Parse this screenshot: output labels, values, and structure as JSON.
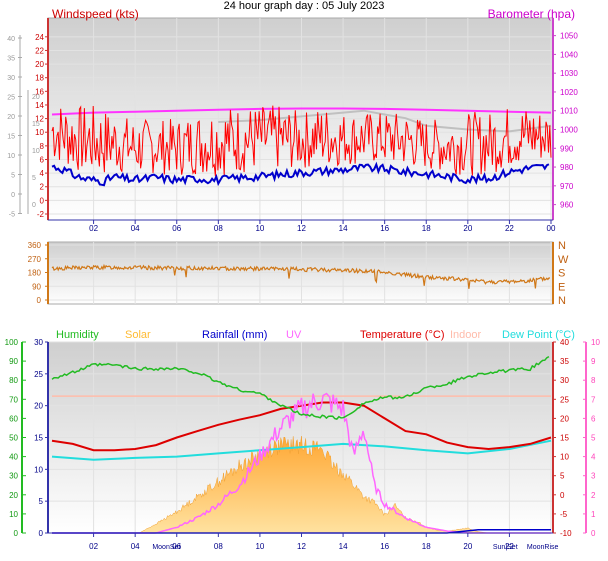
{
  "header": {
    "title": "24 hour graph day : 05 July 2023"
  },
  "x_ticks": [
    "02",
    "04",
    "06",
    "08",
    "10",
    "12",
    "14",
    "16",
    "18",
    "20",
    "22",
    "00"
  ],
  "chart_data": [
    {
      "type": "line",
      "name": "wind-baro",
      "labels": {
        "left": "Windspeed (kts)",
        "right": "Barometer (hpa)"
      },
      "y_left_outer": {
        "ticks": [
          "40",
          "35",
          "30",
          "25",
          "20",
          "15",
          "10",
          "5",
          "0",
          "-5"
        ]
      },
      "y_left": {
        "range": [
          -2,
          25
        ],
        "ticks": [
          24,
          22,
          20,
          18,
          16,
          14,
          12,
          10,
          8,
          6,
          4,
          2,
          0,
          -2
        ]
      },
      "y_left_alt": {
        "ticks": [
          "20",
          "15",
          "10",
          "5",
          "0"
        ]
      },
      "y_right": {
        "range": [
          955,
          1053
        ],
        "ticks": [
          1050,
          1040,
          1030,
          1020,
          1010,
          1000,
          990,
          980,
          970,
          960,
          950
        ]
      },
      "colors": {
        "wind": "#ff0000",
        "avg": "#0000cc",
        "baro": "#ff33ff",
        "baro_shadow": "#c0c0c0"
      },
      "series": {
        "gust_envelope": {
          "x": [
            0,
            1,
            2,
            3,
            4,
            5,
            6,
            7,
            8,
            9,
            10,
            11,
            12,
            13,
            14,
            15,
            16,
            17,
            18,
            19,
            20,
            21,
            22,
            23,
            24
          ],
          "y": [
            15,
            14,
            14,
            13,
            12,
            12,
            12,
            13,
            14,
            14,
            14,
            14,
            13,
            14,
            13,
            13,
            13,
            13,
            12,
            12,
            13,
            13,
            14,
            14,
            13
          ]
        },
        "avg": {
          "x": [
            0,
            0.5,
            1,
            1.5,
            2,
            2.5,
            3,
            3.5,
            4,
            5,
            6,
            7,
            8,
            9,
            10,
            11,
            12,
            13,
            14,
            15,
            16,
            17,
            18,
            19,
            20,
            21,
            22,
            23,
            24
          ],
          "y": [
            5,
            4.6,
            3.8,
            3.2,
            3,
            2.8,
            3.5,
            3.2,
            3,
            3.4,
            3,
            3.2,
            3,
            3.3,
            3.5,
            3.8,
            4.1,
            4.3,
            4.5,
            4.8,
            4.6,
            4.2,
            3.9,
            3.5,
            3.1,
            3.2,
            4.2,
            4.8,
            5
          ]
        },
        "baro": {
          "x": [
            0,
            2,
            4,
            6,
            8,
            10,
            12,
            14,
            16,
            18,
            20,
            22,
            24
          ],
          "y": [
            1008,
            1009,
            1009.5,
            1010,
            1010.5,
            1011,
            1011.2,
            1011.2,
            1011,
            1010.5,
            1010,
            1009.5,
            1009
          ]
        },
        "baro_shadow": {
          "x": [
            8,
            10,
            12,
            14,
            15,
            16,
            17,
            18,
            20,
            22,
            24
          ],
          "y": [
            1004,
            1005,
            1007,
            1009,
            1010,
            1008,
            1006,
            1002,
            1000,
            999,
            1002
          ]
        }
      }
    },
    {
      "type": "line",
      "name": "wind-direction",
      "y_left": {
        "range": [
          0,
          360
        ],
        "ticks": [
          360,
          270,
          180,
          90,
          0
        ]
      },
      "y_right_labels": [
        "N",
        "W",
        "S",
        "E",
        "N"
      ],
      "color": "#d07818",
      "series": {
        "x": [
          0,
          1,
          2,
          3,
          4,
          5,
          6,
          7,
          8,
          9,
          10,
          11,
          12,
          13,
          14,
          15,
          16,
          17,
          18,
          19,
          20,
          21,
          22,
          23,
          24
        ],
        "y": [
          205,
          210,
          213,
          213,
          212,
          210,
          208,
          208,
          207,
          206,
          205,
          203,
          200,
          198,
          195,
          190,
          182,
          165,
          150,
          142,
          130,
          118,
          120,
          128,
          142
        ]
      }
    },
    {
      "type": "area",
      "name": "multi",
      "legend": [
        "Humidity",
        "Solar",
        "Rainfall (mm)",
        "UV",
        "Temperature (°C)",
        "Indoor",
        "Dew Point (°C)"
      ],
      "legend_colors": [
        "#22bb22",
        "#ffbb33",
        "#0000cc",
        "#ff66ff",
        "#dd0000",
        "#ffbbaa",
        "#22dddd"
      ],
      "y_humidity": {
        "range": [
          0,
          100
        ],
        "ticks": [
          100,
          90,
          80,
          70,
          60,
          50,
          40,
          30,
          20,
          10,
          0
        ]
      },
      "y_rain": {
        "range": [
          0,
          30
        ],
        "ticks": [
          30,
          25,
          20,
          15,
          10,
          5,
          0
        ]
      },
      "y_temp": {
        "range": [
          -10,
          40
        ],
        "ticks": [
          40,
          35,
          30,
          25,
          20,
          15,
          10,
          5,
          0,
          -5,
          -10
        ]
      },
      "y_uv": {
        "range": [
          0,
          10
        ],
        "ticks": [
          10,
          9,
          8,
          7,
          6,
          5,
          4,
          3,
          2,
          1,
          0
        ]
      },
      "x_extra_labels": [
        "MoonSet",
        "Sun|Set",
        "MoonRise"
      ],
      "series": {
        "humidity": {
          "x": [
            0,
            1,
            2,
            3,
            4,
            5,
            6,
            7,
            8,
            9,
            10,
            11,
            12,
            13,
            14,
            15,
            16,
            17,
            18,
            19,
            20,
            21,
            22,
            23,
            24
          ],
          "y": [
            81,
            84,
            88,
            88,
            86,
            86,
            86,
            84,
            79,
            75,
            73,
            67,
            62,
            61,
            60,
            68,
            71,
            71,
            76,
            78,
            82,
            84,
            85,
            86,
            93
          ]
        },
        "indoor": {
          "x": [
            0,
            4,
            8,
            12,
            16,
            20,
            24
          ],
          "y": [
            21.5,
            21.5,
            21.5,
            21.5,
            21.5,
            21.5,
            21.5
          ]
        },
        "temperature": {
          "x": [
            0,
            1,
            2,
            3,
            4,
            5,
            6,
            7,
            8,
            9,
            10,
            11,
            12,
            13,
            14,
            15,
            16,
            17,
            18,
            19,
            20,
            21,
            22,
            23,
            24
          ],
          "y": [
            14.5,
            14,
            13,
            13,
            13.2,
            13.8,
            15,
            16,
            17,
            17.8,
            18.5,
            19.5,
            20,
            20.5,
            20.5,
            20,
            18,
            16,
            15.5,
            14.2,
            13.5,
            13.2,
            13.5,
            14,
            15
          ]
        },
        "dewpoint": {
          "x": [
            0,
            2,
            4,
            6,
            8,
            10,
            12,
            14,
            16,
            18,
            20,
            22,
            24
          ],
          "y": [
            12,
            11.5,
            11.8,
            12,
            12.5,
            13,
            13.5,
            14,
            13.6,
            13,
            12.5,
            13.2,
            14.5
          ]
        },
        "solar": {
          "x": [
            0,
            4.2,
            5,
            6,
            7,
            8,
            9,
            10,
            10.5,
            11,
            12,
            13,
            13.5,
            14,
            14.5,
            15,
            15.5,
            16,
            16.5,
            17,
            17.5,
            18,
            18.5,
            19,
            20,
            20.5,
            21,
            24
          ],
          "y": [
            0,
            0,
            1.5,
            3.5,
            6,
            8.5,
            11,
            13,
            14,
            14.5,
            14.5,
            14,
            11,
            10,
            8,
            6,
            5,
            3,
            4.5,
            2.5,
            2,
            1,
            0.5,
            0.3,
            0.8,
            0.2,
            0,
            0
          ]
        },
        "uv": {
          "x": [
            0,
            5,
            6,
            7,
            8,
            9,
            10,
            11,
            12,
            13,
            14,
            14.5,
            15,
            15.5,
            16,
            17,
            18,
            19,
            20,
            24
          ],
          "y": [
            0,
            0,
            0.3,
            0.8,
            1.5,
            2.5,
            4,
            5.5,
            6.5,
            7,
            6.5,
            4,
            5.5,
            2.5,
            1.5,
            0.8,
            0.3,
            0.1,
            0,
            0
          ]
        },
        "rainfall": {
          "x": [
            0,
            19,
            20.5,
            24
          ],
          "y": [
            0,
            0,
            0.5,
            0.5
          ]
        }
      }
    }
  ]
}
